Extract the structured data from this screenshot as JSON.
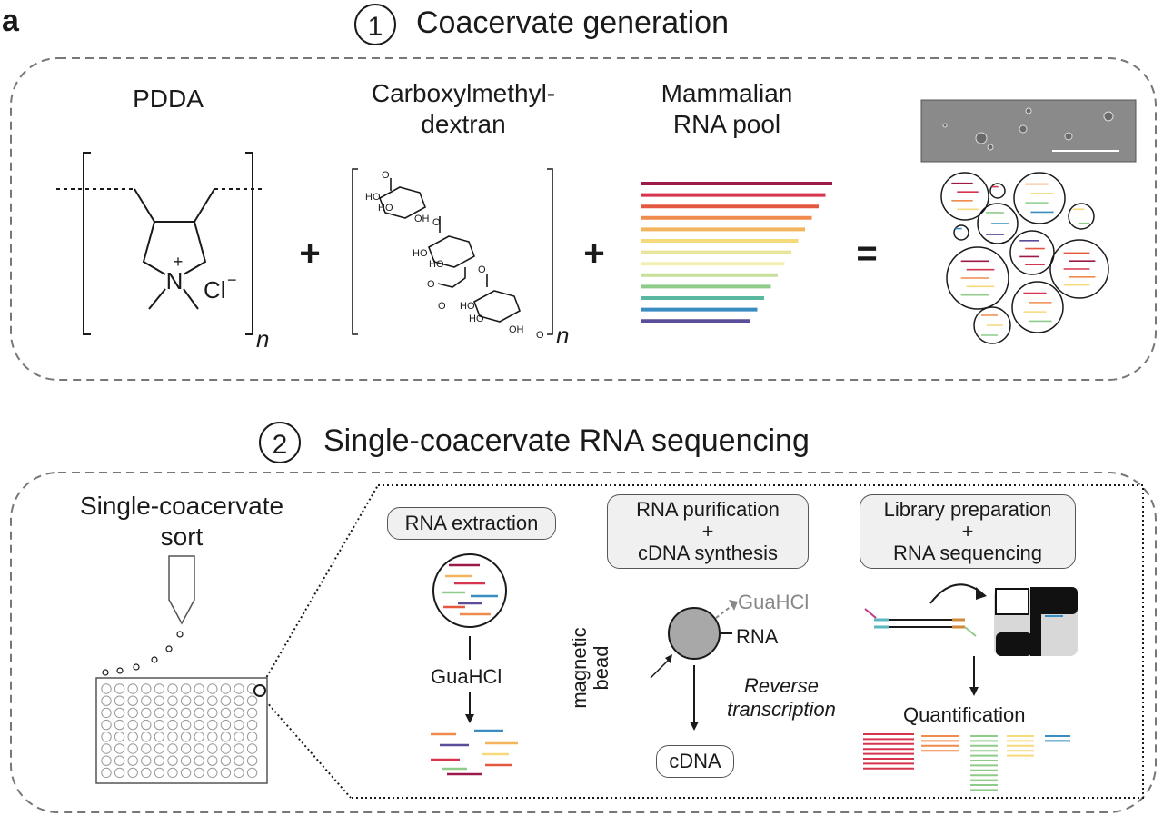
{
  "panel_letter": "a",
  "section1": {
    "number": "1",
    "title": "Coacervate generation",
    "pdda_label": "PDDA",
    "pdda_n": "n",
    "pdda_counterion": "Cl",
    "pdda_counterion_charge": "−",
    "pdda_n_atom": "N",
    "pdda_plus": "+",
    "cmd_label_line1": "Carboxylmethyl-",
    "cmd_label_line2": "dextran",
    "cmd_n": "n",
    "rna_label_line1": "Mammalian",
    "rna_label_line2": "RNA pool",
    "plus1": "+",
    "plus2": "+",
    "equals": "=",
    "rna_colors": [
      "#9c1a4a",
      "#d6344f",
      "#e3583e",
      "#f08b4e",
      "#f4b45c",
      "#f6d97a",
      "#e8e59a",
      "#f3f0b4",
      "#c7e09a",
      "#8fcc8a",
      "#5bb8a0",
      "#3a8dc0",
      "#5b4d9a"
    ]
  },
  "section2": {
    "number": "2",
    "title": "Single-coacervate RNA sequencing",
    "sort_label_line1": "Single-coacervate",
    "sort_label_line2": "sort",
    "box_extraction": "RNA extraction",
    "box_purification_line1": "RNA purification",
    "box_purification_line2": "+",
    "box_purification_line3": "cDNA synthesis",
    "box_library_line1": "Library preparation",
    "box_library_line2": "+",
    "box_library_line3": "RNA sequencing",
    "guahcl_extraction": "GuaHCl",
    "guahcl_purification": "GuaHCl",
    "rna_label": "RNA",
    "bead_label_line1": "magnetic",
    "bead_label_line2": "bead",
    "rt_line1": "Reverse",
    "rt_line2": "transcription",
    "cdna_label": "cDNA",
    "quant_label": "Quantification"
  }
}
